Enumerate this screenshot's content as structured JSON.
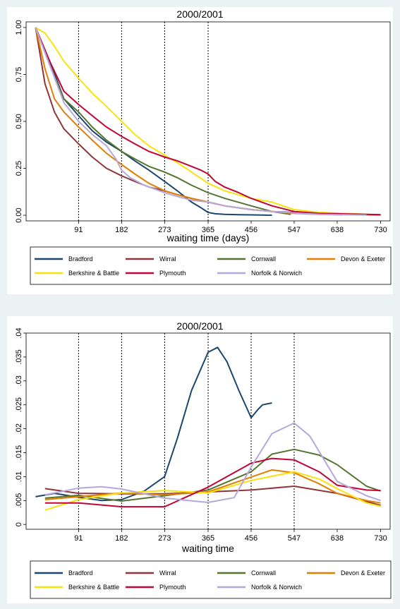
{
  "chart_data": [
    {
      "type": "line",
      "title": "2000/2001",
      "xlabel": "waiting time (days)",
      "ylabel": "",
      "xlim": [
        -20,
        750
      ],
      "ylim": [
        -0.03,
        1.03
      ],
      "x_ticks": [
        91,
        182,
        273,
        365,
        456,
        547,
        638,
        730
      ],
      "y_ticks": [
        0.0,
        0.25,
        0.5,
        0.75,
        1.0
      ],
      "y_tick_labels": [
        "0.00",
        "0.25",
        "0.50",
        "0.75",
        "1.00"
      ],
      "vlines": [
        91,
        182,
        273,
        365
      ],
      "series": [
        {
          "name": "Bradford",
          "color": "#1a476f",
          "x": [
            0,
            30,
            60,
            91,
            120,
            150,
            182,
            210,
            240,
            273,
            300,
            330,
            350,
            365,
            380,
            400,
            430,
            456,
            480,
            500
          ],
          "y": [
            1.0,
            0.82,
            0.62,
            0.53,
            0.45,
            0.39,
            0.34,
            0.29,
            0.24,
            0.18,
            0.13,
            0.07,
            0.04,
            0.015,
            0.008,
            0.005,
            0.003,
            0.002,
            0.001,
            0.0
          ]
        },
        {
          "name": "Wirral",
          "color": "#90353b",
          "x": [
            0,
            20,
            40,
            60,
            91,
            120,
            150,
            182,
            210,
            240,
            273,
            300,
            330,
            365,
            400,
            456,
            500,
            547,
            600,
            700,
            730
          ],
          "y": [
            1.0,
            0.7,
            0.55,
            0.46,
            0.38,
            0.31,
            0.25,
            0.21,
            0.18,
            0.15,
            0.13,
            0.11,
            0.09,
            0.07,
            0.05,
            0.03,
            0.02,
            0.015,
            0.01,
            0.003,
            0.001
          ]
        },
        {
          "name": "Cornwall",
          "color": "#55752f",
          "x": [
            0,
            30,
            60,
            91,
            120,
            150,
            182,
            210,
            240,
            273,
            300,
            330,
            365,
            400,
            456,
            500,
            540
          ],
          "y": [
            1.0,
            0.8,
            0.62,
            0.55,
            0.47,
            0.4,
            0.34,
            0.3,
            0.26,
            0.23,
            0.2,
            0.16,
            0.12,
            0.09,
            0.05,
            0.02,
            0.005
          ]
        },
        {
          "name": "Devon & Exeter",
          "color": "#e37e00",
          "x": [
            0,
            20,
            40,
            60,
            91,
            120,
            150,
            182,
            210,
            240,
            273,
            300,
            330,
            365,
            400,
            456,
            500,
            547,
            600,
            650
          ],
          "y": [
            1.0,
            0.78,
            0.62,
            0.55,
            0.47,
            0.4,
            0.33,
            0.27,
            0.22,
            0.17,
            0.13,
            0.11,
            0.09,
            0.07,
            0.05,
            0.03,
            0.02,
            0.01,
            0.005,
            0.002
          ]
        },
        {
          "name": "Berkshire & Battle",
          "color": "#f8e20c",
          "x": [
            0,
            20,
            40,
            60,
            91,
            120,
            150,
            182,
            210,
            240,
            273,
            300,
            330,
            365,
            400,
            456,
            500,
            547,
            600,
            700,
            730
          ],
          "y": [
            1.0,
            0.97,
            0.9,
            0.82,
            0.73,
            0.65,
            0.58,
            0.5,
            0.43,
            0.37,
            0.32,
            0.28,
            0.23,
            0.17,
            0.13,
            0.09,
            0.07,
            0.03,
            0.015,
            0.005,
            0.002
          ]
        },
        {
          "name": "Plymouth",
          "color": "#c10534",
          "x": [
            0,
            30,
            60,
            91,
            120,
            150,
            182,
            210,
            240,
            273,
            300,
            330,
            350,
            365,
            380,
            400,
            430,
            456,
            500,
            547,
            600,
            700,
            730
          ],
          "y": [
            1.0,
            0.82,
            0.66,
            0.59,
            0.53,
            0.47,
            0.42,
            0.38,
            0.34,
            0.31,
            0.29,
            0.26,
            0.24,
            0.22,
            0.18,
            0.15,
            0.12,
            0.09,
            0.05,
            0.02,
            0.01,
            0.005,
            0.003
          ]
        },
        {
          "name": "Norfolk & Norwich",
          "color": "#b5a8dc",
          "x": [
            0,
            30,
            60,
            91,
            120,
            150,
            170,
            182,
            200,
            230,
            273,
            300,
            330,
            365,
            400,
            456,
            500,
            547,
            600,
            650,
            700
          ],
          "y": [
            1.0,
            0.8,
            0.6,
            0.5,
            0.43,
            0.37,
            0.3,
            0.24,
            0.2,
            0.16,
            0.12,
            0.1,
            0.08,
            0.07,
            0.05,
            0.03,
            0.02,
            0.012,
            0.005,
            0.003,
            0.001
          ]
        }
      ]
    },
    {
      "type": "line",
      "title": "2000/2001",
      "xlabel": "waiting time",
      "ylabel": "",
      "xlim": [
        -20,
        750
      ],
      "ylim": [
        -0.001,
        0.04
      ],
      "x_ticks": [
        91,
        182,
        273,
        365,
        456,
        547,
        638,
        730
      ],
      "y_ticks": [
        0,
        0.005,
        0.01,
        0.015,
        0.02,
        0.025,
        0.03,
        0.035,
        0.04
      ],
      "y_tick_labels": [
        "0",
        ".005",
        ".01",
        ".015",
        ".02",
        ".025",
        ".03",
        ".035",
        ".04"
      ],
      "vlines": [
        91,
        182,
        273,
        365,
        456,
        547
      ],
      "series": [
        {
          "name": "Bradford",
          "color": "#1a476f",
          "x": [
            0,
            40,
            91,
            140,
            182,
            230,
            273,
            300,
            330,
            365,
            385,
            405,
            430,
            456,
            470,
            480,
            500
          ],
          "y": [
            0.0058,
            0.0065,
            0.0057,
            0.005,
            0.0052,
            0.007,
            0.01,
            0.018,
            0.028,
            0.036,
            0.037,
            0.034,
            0.028,
            0.0223,
            0.024,
            0.025,
            0.0254
          ]
        },
        {
          "name": "Wirral",
          "color": "#90353b",
          "x": [
            20,
            91,
            182,
            273,
            365,
            456,
            547,
            638,
            730
          ],
          "y": [
            0.0075,
            0.0065,
            0.0064,
            0.0064,
            0.0068,
            0.0072,
            0.008,
            0.0065,
            0.004
          ]
        },
        {
          "name": "Cornwall",
          "color": "#55752f",
          "x": [
            20,
            91,
            182,
            273,
            365,
            456,
            500,
            547,
            600,
            638,
            700,
            730
          ],
          "y": [
            0.0055,
            0.0061,
            0.0049,
            0.006,
            0.0072,
            0.011,
            0.0147,
            0.0157,
            0.0145,
            0.0125,
            0.008,
            0.007
          ]
        },
        {
          "name": "Devon & Exeter",
          "color": "#e37e00",
          "x": [
            20,
            91,
            182,
            273,
            365,
            456,
            500,
            547,
            600,
            638,
            700,
            730
          ],
          "y": [
            0.0052,
            0.0058,
            0.0066,
            0.0062,
            0.0068,
            0.0099,
            0.0114,
            0.0108,
            0.0085,
            0.0065,
            0.005,
            0.0045
          ]
        },
        {
          "name": "Berkshire & Battle",
          "color": "#f8e20c",
          "x": [
            20,
            91,
            182,
            273,
            365,
            456,
            547,
            600,
            638,
            700,
            730
          ],
          "y": [
            0.003,
            0.0052,
            0.0066,
            0.0071,
            0.0066,
            0.0092,
            0.011,
            0.0095,
            0.0075,
            0.0045,
            0.0038
          ]
        },
        {
          "name": "Plymouth",
          "color": "#c10534",
          "x": [
            20,
            91,
            182,
            273,
            365,
            456,
            500,
            547,
            600,
            638,
            700,
            730
          ],
          "y": [
            0.0045,
            0.0045,
            0.0037,
            0.0037,
            0.0078,
            0.0128,
            0.0138,
            0.0135,
            0.011,
            0.0082,
            0.0072,
            0.0071
          ]
        },
        {
          "name": "Norfolk & Norwich",
          "color": "#b5a8dc",
          "x": [
            20,
            91,
            140,
            182,
            273,
            365,
            420,
            456,
            500,
            547,
            580,
            638,
            700,
            730
          ],
          "y": [
            0.0062,
            0.0076,
            0.0079,
            0.0074,
            0.0055,
            0.0046,
            0.0056,
            0.012,
            0.019,
            0.0212,
            0.0185,
            0.009,
            0.006,
            0.005
          ]
        }
      ]
    }
  ]
}
